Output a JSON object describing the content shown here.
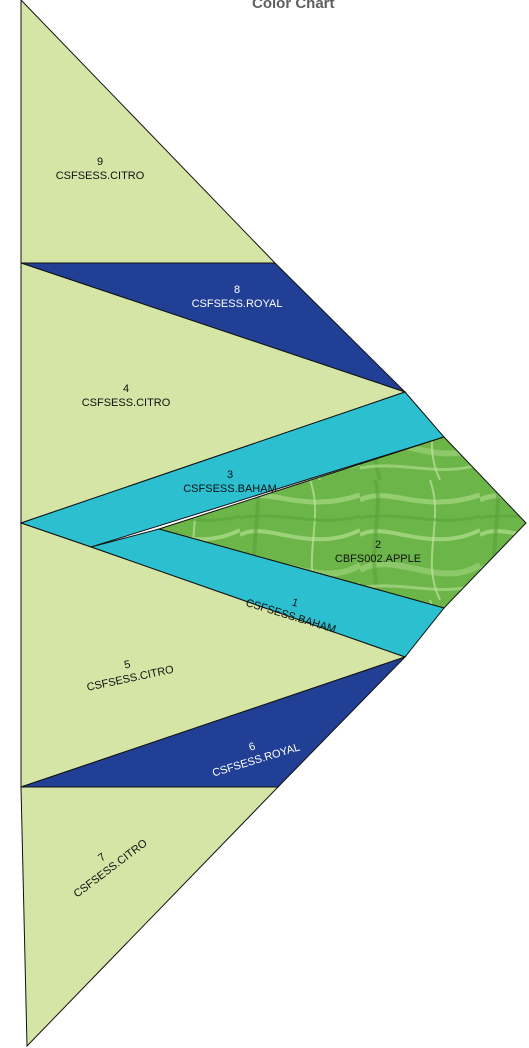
{
  "title": "Color Chart",
  "colors": {
    "citro": "#d5e5a6",
    "royal": "#213f94",
    "baham": "#2bbfcf",
    "apple": "#6cb548",
    "text_dark": "#111111",
    "text_light": "#ffffff"
  },
  "pieces": [
    {
      "number": "1",
      "code": "CSFSESS.BAHAM",
      "fabric": "baham"
    },
    {
      "number": "2",
      "code": "CBFS002.APPLE",
      "fabric": "apple"
    },
    {
      "number": "3",
      "code": "CSFSESS.BAHAM",
      "fabric": "baham"
    },
    {
      "number": "4",
      "code": "CSFSESS.CITRO",
      "fabric": "citro"
    },
    {
      "number": "5",
      "code": "CSFSESS.CITRO",
      "fabric": "citro"
    },
    {
      "number": "6",
      "code": "CSFSESS.ROYAL",
      "fabric": "royal"
    },
    {
      "number": "7",
      "code": "CSFSESS.CITRO",
      "fabric": "citro"
    },
    {
      "number": "8",
      "code": "CSFSESS.ROYAL",
      "fabric": "royal"
    },
    {
      "number": "9",
      "code": "CSFSESS.CITRO",
      "fabric": "citro"
    }
  ]
}
